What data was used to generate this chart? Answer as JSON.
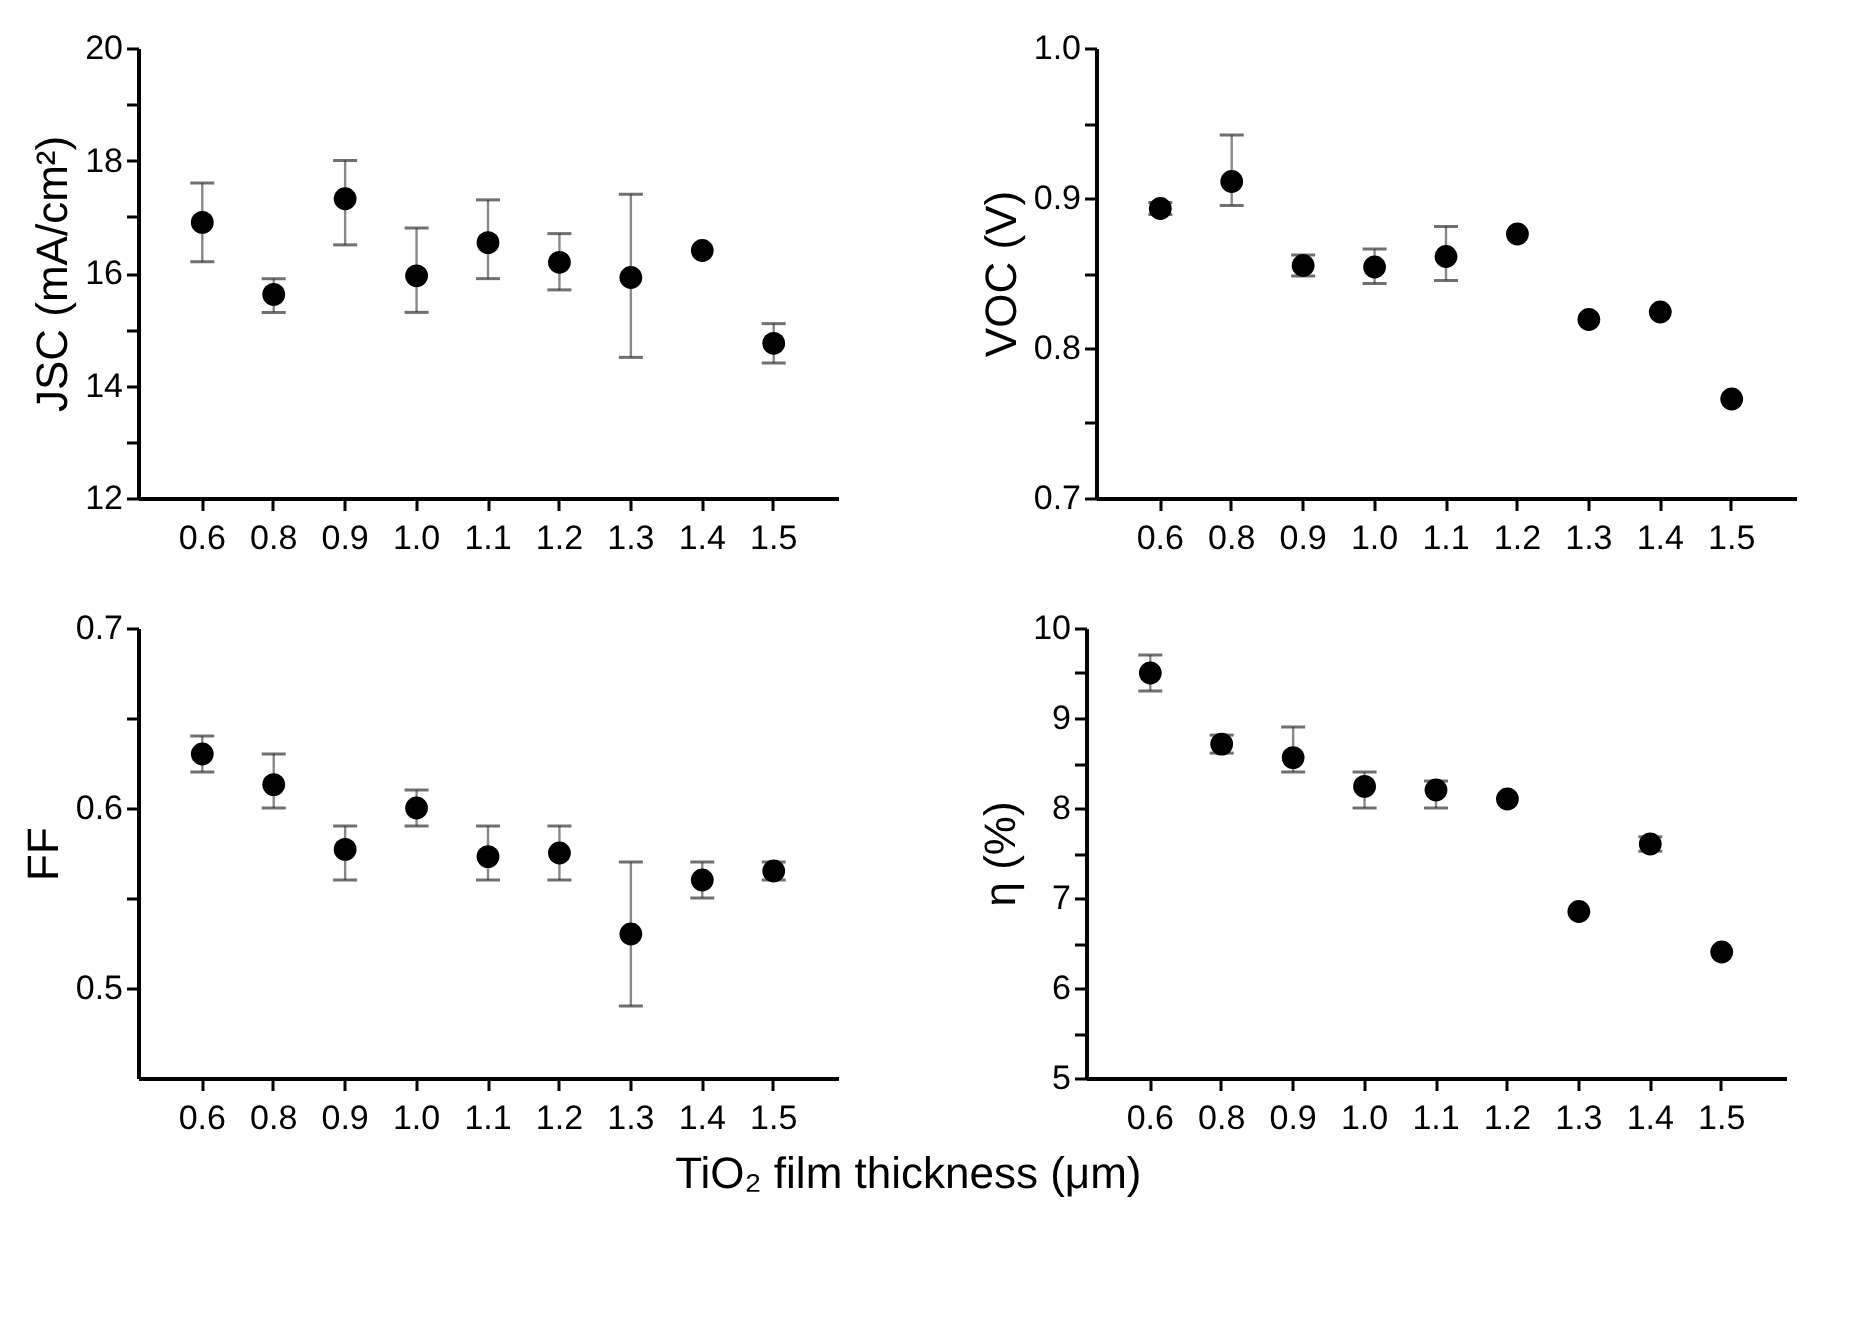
{
  "chart_data": [
    {
      "type": "scatter",
      "ylabel": "JSC (mA/cm²)",
      "marker": "circle",
      "categories": [
        "0.6",
        "0.8",
        "0.9",
        "1.0",
        "1.1",
        "1.2",
        "1.3",
        "1.4",
        "1.5"
      ],
      "series": [
        {
          "color": "#000000",
          "values": [
            16.9,
            15.62,
            17.32,
            15.95,
            16.54,
            16.19,
            15.92,
            16.4,
            14.75
          ],
          "errors": [
            [
              16.2,
              17.6
            ],
            [
              15.3,
              15.9
            ],
            [
              16.5,
              18.0
            ],
            [
              15.3,
              16.8
            ],
            [
              15.9,
              17.3
            ],
            [
              15.7,
              16.7
            ],
            [
              14.5,
              17.4
            ],
            null,
            [
              14.4,
              15.1
            ]
          ]
        }
      ],
      "ylim": [
        12,
        20
      ],
      "yticks": [
        12,
        {
          "value": 13,
          "label": null
        },
        14,
        {
          "value": 15,
          "label": null
        },
        16,
        {
          "value": 17,
          "label": null
        },
        18,
        {
          "value": 19,
          "label": null
        },
        20
      ]
    },
    {
      "type": "scatter",
      "ylabel": "VOC (V)",
      "marker": "circle",
      "categories": [
        "0.6",
        "0.8",
        "0.9",
        "1.0",
        "1.1",
        "1.2",
        "1.3",
        "1.4",
        "1.5"
      ],
      "series": [
        {
          "color": "#000000",
          "values": [
            0.893,
            0.911,
            0.855,
            0.854,
            0.861,
            0.876,
            0.819,
            0.824,
            0.766
          ],
          "errors": [
            0.004,
            [
              0.895,
              0.942
            ],
            [
              0.848,
              0.862
            ],
            [
              0.843,
              0.866
            ],
            [
              0.845,
              0.881
            ],
            null,
            null,
            null,
            null
          ]
        }
      ],
      "ylim": [
        0.7,
        1.0
      ],
      "yticks": [
        0.7,
        {
          "value": 0.75,
          "label": null
        },
        0.8,
        {
          "value": 0.85,
          "label": null
        },
        0.9,
        {
          "value": 0.95,
          "label": null
        },
        {
          "value": 1.0,
          "label": "1.0"
        }
      ]
    },
    {
      "type": "scatter",
      "ylabel": "FF",
      "xlabel": "TiO₂ film thickness (μm)",
      "marker": "circle",
      "categories": [
        "0.6",
        "0.8",
        "0.9",
        "1.0",
        "1.1",
        "1.2",
        "1.3",
        "1.4",
        "1.5"
      ],
      "series": [
        {
          "color": "#000000",
          "values": [
            0.63,
            0.613,
            0.577,
            0.6,
            0.573,
            0.575,
            0.53,
            0.56,
            0.565
          ],
          "errors": [
            [
              0.62,
              0.64
            ],
            [
              0.6,
              0.63
            ],
            [
              0.56,
              0.59
            ],
            [
              0.59,
              0.61
            ],
            [
              0.56,
              0.59
            ],
            [
              0.56,
              0.59
            ],
            [
              0.49,
              0.57
            ],
            [
              0.55,
              0.57
            ],
            0.005
          ]
        }
      ],
      "ylim": [
        0.45,
        0.7
      ],
      "yticks": [
        0.5,
        {
          "value": 0.55,
          "label": null
        },
        0.6,
        {
          "value": 0.65,
          "label": null
        },
        0.7
      ]
    },
    {
      "type": "scatter",
      "ylabel": "η (%)",
      "marker": "circle",
      "categories": [
        "0.6",
        "0.8",
        "0.9",
        "1.0",
        "1.1",
        "1.2",
        "1.3",
        "1.4",
        "1.5"
      ],
      "series": [
        {
          "color": "#000000",
          "values": [
            9.5,
            8.71,
            8.56,
            8.24,
            8.2,
            8.1,
            6.85,
            7.6,
            6.4
          ],
          "errors": [
            [
              9.3,
              9.7
            ],
            0.1,
            [
              8.4,
              8.9
            ],
            [
              8.0,
              8.4
            ],
            [
              8.0,
              8.3
            ],
            null,
            null,
            0.08,
            null
          ]
        }
      ],
      "ylim": [
        5,
        10
      ],
      "yticks": [
        5,
        {
          "value": 5.5,
          "label": null
        },
        6,
        {
          "value": 6.5,
          "label": null
        },
        7,
        {
          "value": 7.5,
          "label": null
        },
        8,
        {
          "value": 8.5,
          "label": null
        },
        9,
        {
          "value": 9.5,
          "label": null
        },
        10
      ]
    }
  ]
}
